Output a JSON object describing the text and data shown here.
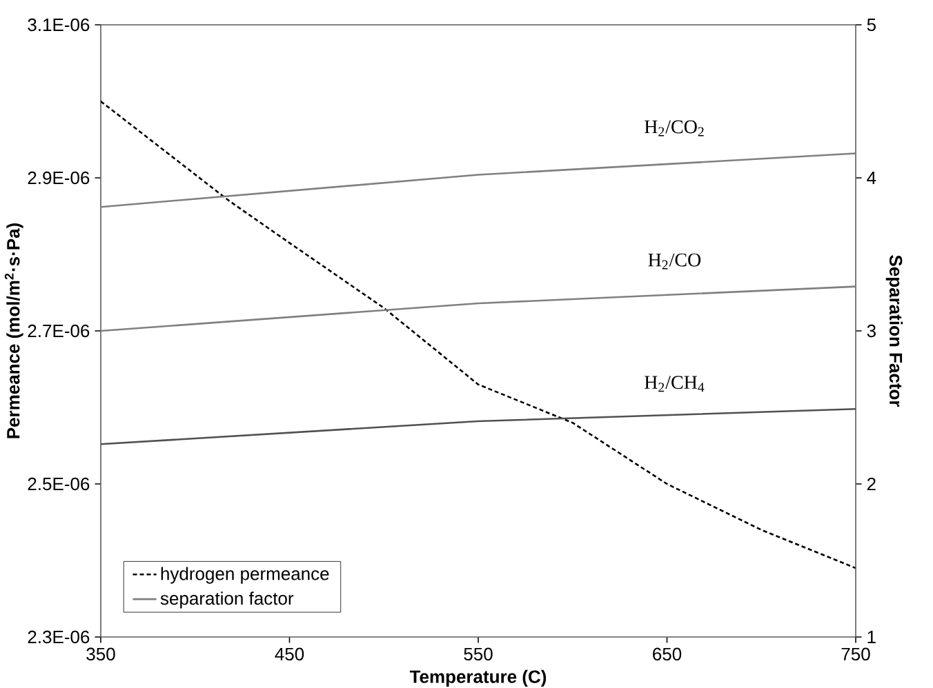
{
  "chart_data": {
    "type": "line",
    "xlabel": "Temperature (C)",
    "ylabel": "Permeance (mol/m$^{2}$·s·Pa)",
    "y2label": "Separation Factor",
    "xlim": [
      350,
      750
    ],
    "xticks": [
      350,
      450,
      550,
      650,
      750
    ],
    "ylim": [
      2.3e-06,
      3.1e-06
    ],
    "yticks": [
      {
        "value": 2.3e-06,
        "label": "2.3E-06"
      },
      {
        "value": 2.5e-06,
        "label": "2.5E-06"
      },
      {
        "value": 2.7e-06,
        "label": "2.7E-06"
      },
      {
        "value": 2.9e-06,
        "label": "2.9E-06"
      },
      {
        "value": 3.1e-06,
        "label": "3.1E-06"
      }
    ],
    "y2lim": [
      1,
      5
    ],
    "y2ticks": [
      1,
      2,
      3,
      4,
      5
    ],
    "grid": false,
    "legend": "bottom left",
    "marker": "none",
    "series": [
      {
        "name": "hydrogen permeance",
        "color": "#000000",
        "line_style": "dashed",
        "x": [
          350,
          418,
          450,
          500,
          550,
          600,
          650,
          700,
          750
        ],
        "values": [
          3e-06,
          2.87e-06,
          2.815e-06,
          2.73e-06,
          2.63e-06,
          2.58e-06,
          2.5e-06,
          2.44e-06,
          2.39e-06
        ]
      },
      {
        "name": "separation factor",
        "color": "#808080",
        "line_style": "solid",
        "axis": "y2",
        "x": [
          350,
          550,
          750
        ],
        "values": [
          3.81,
          4.02,
          4.16
        ]
      },
      {
        "color": "#808080",
        "line_style": "solid",
        "axis": "y2",
        "x": [
          350,
          550,
          750
        ],
        "values": [
          3.0,
          3.18,
          3.29
        ]
      },
      {
        "color": "#505050",
        "line_style": "solid",
        "axis": "y2",
        "x": [
          350,
          550,
          750
        ],
        "values": [
          2.26,
          2.41,
          2.49
        ]
      }
    ],
    "annotations": [
      "H$_{2}$/CO$_{2}$",
      "H$_{2}$/CO",
      "H$_{2}$/CH$_{4}$"
    ]
  }
}
